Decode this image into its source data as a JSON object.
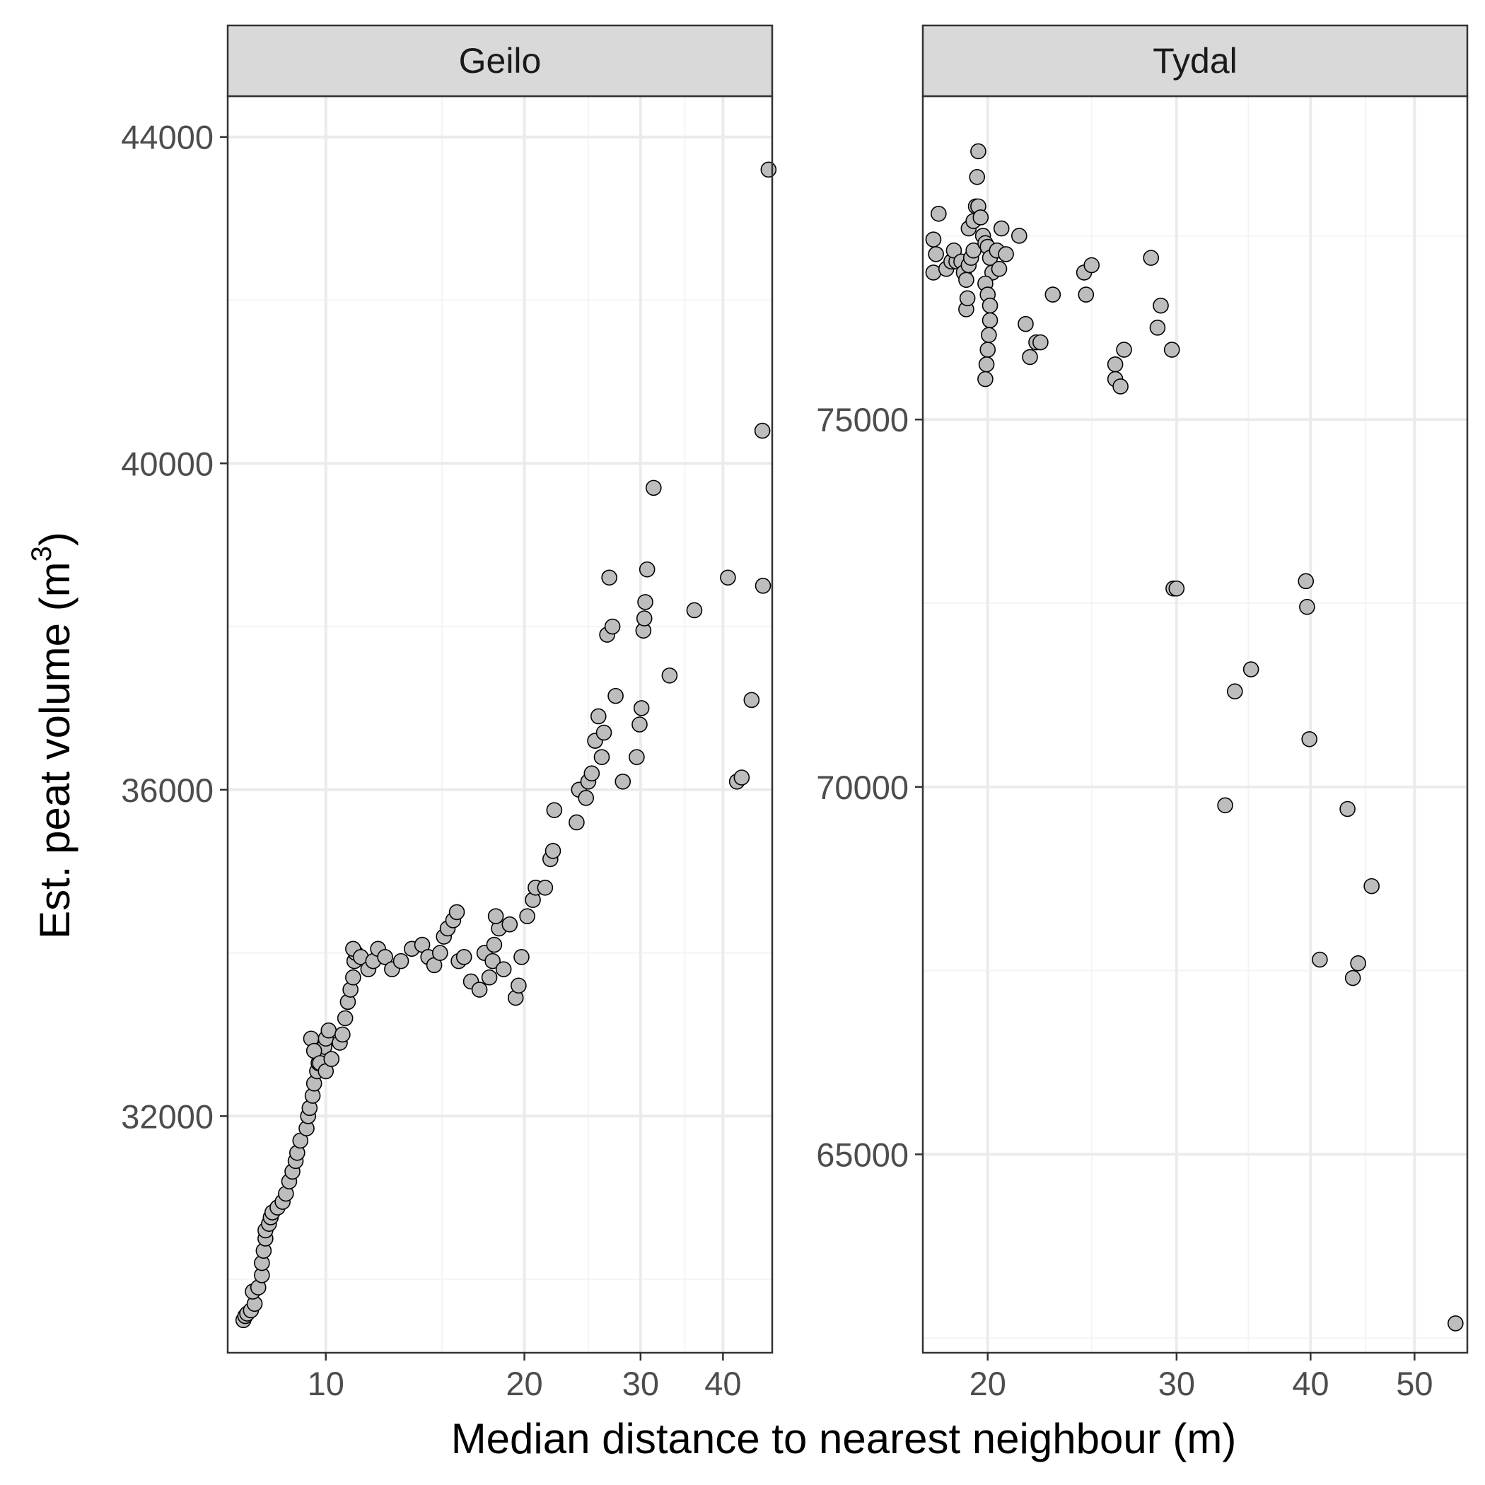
{
  "chart_data": {
    "type": "scatter",
    "xlabel": "Median distance to nearest neighbour (m)",
    "ylabel": "Est. peat volume (m",
    "ylabel_superscript": "3",
    "ylabel_close": ")",
    "x_scale": "log10",
    "grid": true,
    "colors": {
      "point_fill": "#bdbdbd",
      "point_stroke": "#000000",
      "strip_fill": "#d9d9d9",
      "panel_border": "#333333",
      "grid_major": "#ebebeb",
      "grid_minor": "#f4f4f4"
    },
    "panels": [
      {
        "strip_label": "Geilo",
        "xlim": [
          7.1,
          47.5
        ],
        "ylim": [
          29100,
          44500
        ],
        "x_major_ticks": [
          10,
          20,
          30,
          40
        ],
        "x_tick_labels": [
          "10",
          "20",
          "30",
          "40"
        ],
        "x_minor_ticks": [
          15,
          25,
          35
        ],
        "y_major_ticks": [
          32000,
          36000,
          40000,
          44000
        ],
        "y_tick_labels": [
          "32000",
          "36000",
          "40000",
          "44000"
        ],
        "y_minor_ticks": [
          30000,
          34000,
          38000,
          42000
        ],
        "points": [
          [
            7.5,
            29500
          ],
          [
            7.55,
            29550
          ],
          [
            7.6,
            29580
          ],
          [
            7.7,
            29620
          ],
          [
            7.8,
            29700
          ],
          [
            7.75,
            29850
          ],
          [
            7.9,
            29900
          ],
          [
            8.0,
            30050
          ],
          [
            8.0,
            30200
          ],
          [
            8.05,
            30350
          ],
          [
            8.1,
            30500
          ],
          [
            8.1,
            30600
          ],
          [
            8.2,
            30680
          ],
          [
            8.25,
            30760
          ],
          [
            8.3,
            30820
          ],
          [
            8.45,
            30880
          ],
          [
            8.6,
            30950
          ],
          [
            8.7,
            31050
          ],
          [
            8.8,
            31200
          ],
          [
            8.9,
            31320
          ],
          [
            9.0,
            31450
          ],
          [
            9.05,
            31550
          ],
          [
            9.15,
            31700
          ],
          [
            9.35,
            31850
          ],
          [
            9.4,
            32000
          ],
          [
            9.45,
            32100
          ],
          [
            9.55,
            32250
          ],
          [
            9.6,
            32400
          ],
          [
            9.7,
            32550
          ],
          [
            9.75,
            32650
          ],
          [
            9.85,
            32750
          ],
          [
            9.95,
            32850
          ],
          [
            10.0,
            32950
          ],
          [
            10.1,
            33050
          ],
          [
            9.5,
            32950
          ],
          [
            9.6,
            32800
          ],
          [
            9.8,
            32650
          ],
          [
            10.0,
            32550
          ],
          [
            10.2,
            32700
          ],
          [
            10.5,
            32900
          ],
          [
            10.6,
            33000
          ],
          [
            10.7,
            33200
          ],
          [
            10.8,
            33400
          ],
          [
            10.9,
            33550
          ],
          [
            11.0,
            33700
          ],
          [
            11.05,
            33900
          ],
          [
            11.1,
            34000
          ],
          [
            11.0,
            34050
          ],
          [
            11.3,
            33950
          ],
          [
            11.6,
            33800
          ],
          [
            11.8,
            33900
          ],
          [
            12.0,
            34050
          ],
          [
            12.3,
            33950
          ],
          [
            12.6,
            33800
          ],
          [
            13.0,
            33900
          ],
          [
            13.5,
            34050
          ],
          [
            14.0,
            34100
          ],
          [
            14.3,
            33950
          ],
          [
            14.6,
            33850
          ],
          [
            14.9,
            34000
          ],
          [
            15.1,
            34200
          ],
          [
            15.3,
            34300
          ],
          [
            15.6,
            34400
          ],
          [
            15.8,
            34500
          ],
          [
            15.9,
            33900
          ],
          [
            16.2,
            33950
          ],
          [
            16.6,
            33650
          ],
          [
            17.1,
            33550
          ],
          [
            17.4,
            34000
          ],
          [
            17.7,
            33700
          ],
          [
            17.9,
            33900
          ],
          [
            18.0,
            34100
          ],
          [
            18.3,
            34300
          ],
          [
            18.1,
            34450
          ],
          [
            18.6,
            33800
          ],
          [
            19.0,
            34350
          ],
          [
            19.4,
            33450
          ],
          [
            19.6,
            33600
          ],
          [
            19.8,
            33950
          ],
          [
            20.2,
            34450
          ],
          [
            20.6,
            34650
          ],
          [
            20.8,
            34800
          ],
          [
            21.5,
            34800
          ],
          [
            21.9,
            35150
          ],
          [
            22.1,
            35250
          ],
          [
            22.2,
            35750
          ],
          [
            24.0,
            35600
          ],
          [
            24.2,
            36000
          ],
          [
            24.8,
            35900
          ],
          [
            25.0,
            36100
          ],
          [
            25.3,
            36200
          ],
          [
            25.6,
            36600
          ],
          [
            25.9,
            36900
          ],
          [
            26.2,
            36400
          ],
          [
            26.4,
            36700
          ],
          [
            26.7,
            37900
          ],
          [
            26.9,
            38600
          ],
          [
            27.2,
            38000
          ],
          [
            27.5,
            37150
          ],
          [
            28.2,
            36100
          ],
          [
            29.6,
            36400
          ],
          [
            29.9,
            36800
          ],
          [
            30.1,
            37000
          ],
          [
            30.3,
            37950
          ],
          [
            30.4,
            38100
          ],
          [
            30.5,
            38300
          ],
          [
            30.7,
            38700
          ],
          [
            31.4,
            39700
          ],
          [
            33.2,
            37400
          ],
          [
            36.2,
            38200
          ],
          [
            40.7,
            38600
          ],
          [
            42.0,
            36100
          ],
          [
            42.7,
            36150
          ],
          [
            44.2,
            37100
          ],
          [
            45.9,
            40400
          ],
          [
            46.0,
            38500
          ],
          [
            46.9,
            43600
          ]
        ]
      },
      {
        "strip_label": "Tydal",
        "xlim": [
          17.4,
          56.0
        ],
        "ylim": [
          62300,
          79400
        ],
        "x_major_ticks": [
          20,
          30,
          40,
          50
        ],
        "x_tick_labels": [
          "20",
          "30",
          "40",
          "50"
        ],
        "x_minor_ticks": [
          25,
          35,
          45
        ],
        "y_major_ticks": [
          65000,
          70000,
          75000
        ],
        "y_tick_labels": [
          "65000",
          "70000",
          "75000"
        ],
        "y_minor_ticks": [
          62500,
          67500,
          72500,
          77500
        ],
        "points": [
          [
            17.8,
            77450
          ],
          [
            17.9,
            77250
          ],
          [
            18.0,
            77800
          ],
          [
            17.8,
            77000
          ],
          [
            18.3,
            77050
          ],
          [
            18.5,
            77150
          ],
          [
            18.7,
            77150
          ],
          [
            18.6,
            77300
          ],
          [
            18.9,
            77150
          ],
          [
            19.0,
            77000
          ],
          [
            19.1,
            76900
          ],
          [
            19.2,
            77100
          ],
          [
            19.3,
            77200
          ],
          [
            19.4,
            77300
          ],
          [
            19.2,
            77600
          ],
          [
            19.4,
            77700
          ],
          [
            19.5,
            77900
          ],
          [
            19.55,
            78300
          ],
          [
            19.6,
            78650
          ],
          [
            19.6,
            77900
          ],
          [
            19.7,
            77750
          ],
          [
            19.8,
            77500
          ],
          [
            19.9,
            77400
          ],
          [
            20.0,
            77350
          ],
          [
            20.1,
            77200
          ],
          [
            20.2,
            77000
          ],
          [
            19.9,
            76850
          ],
          [
            20.0,
            76700
          ],
          [
            20.1,
            76550
          ],
          [
            20.1,
            76350
          ],
          [
            20.05,
            76150
          ],
          [
            20.0,
            75950
          ],
          [
            19.95,
            75750
          ],
          [
            19.9,
            75550
          ],
          [
            19.1,
            76500
          ],
          [
            19.15,
            76650
          ],
          [
            20.4,
            77300
          ],
          [
            20.5,
            77050
          ],
          [
            20.6,
            77600
          ],
          [
            20.8,
            77250
          ],
          [
            21.4,
            77500
          ],
          [
            21.7,
            76300
          ],
          [
            21.9,
            75850
          ],
          [
            22.2,
            76050
          ],
          [
            22.4,
            76050
          ],
          [
            23.0,
            76700
          ],
          [
            24.6,
            77000
          ],
          [
            24.7,
            76700
          ],
          [
            25.0,
            77100
          ],
          [
            26.3,
            75750
          ],
          [
            26.3,
            75550
          ],
          [
            26.6,
            75450
          ],
          [
            26.8,
            75950
          ],
          [
            28.4,
            77200
          ],
          [
            28.8,
            76250
          ],
          [
            29.0,
            76550
          ],
          [
            29.7,
            75950
          ],
          [
            29.8,
            72700
          ],
          [
            30.0,
            72700
          ],
          [
            33.3,
            69750
          ],
          [
            34.0,
            71300
          ],
          [
            35.2,
            71600
          ],
          [
            39.6,
            72800
          ],
          [
            39.7,
            72450
          ],
          [
            39.9,
            70650
          ],
          [
            40.8,
            67650
          ],
          [
            43.3,
            69700
          ],
          [
            43.8,
            67400
          ],
          [
            44.3,
            67600
          ],
          [
            45.6,
            68650
          ],
          [
            54.6,
            62700
          ]
        ]
      }
    ]
  }
}
